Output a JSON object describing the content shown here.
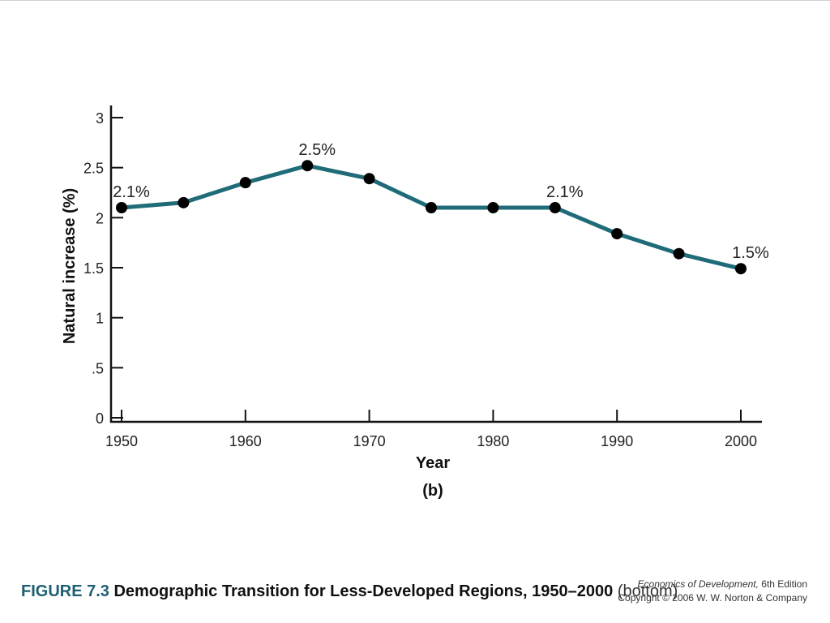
{
  "chart_data": {
    "type": "line",
    "x": [
      1950,
      1955,
      1960,
      1965,
      1970,
      1975,
      1980,
      1985,
      1990,
      1995,
      2000
    ],
    "series": [
      {
        "values": [
          2.1,
          2.15,
          2.35,
          2.52,
          2.39,
          2.1,
          2.1,
          2.1,
          1.84,
          1.64,
          1.49
        ]
      }
    ],
    "xlabel": "Year",
    "ylabel": "Natural increase (%)",
    "sublabel": "(b)",
    "xlim": [
      1950,
      2000
    ],
    "ylim": [
      0,
      3
    ],
    "xticks": [
      1950,
      1960,
      1970,
      1980,
      1990,
      2000
    ],
    "xtick_labels": [
      "1950",
      "1960",
      "1970",
      "1980",
      "1990",
      "2000"
    ],
    "yticks": [
      0,
      0.5,
      1,
      1.5,
      2,
      2.5,
      3
    ],
    "ytick_labels": [
      "0",
      ".5",
      "1",
      "1.5",
      "2",
      "2.5",
      "3"
    ],
    "annotations": [
      {
        "x": 1950,
        "y": 2.1,
        "text": "2.1%"
      },
      {
        "x": 1965,
        "y": 2.52,
        "text": "2.5%"
      },
      {
        "x": 1985,
        "y": 2.1,
        "text": "2.1%"
      },
      {
        "x": 2000,
        "y": 1.49,
        "text": "1.5%"
      }
    ],
    "grid": false,
    "line_color": "#1f6b78",
    "marker_color": "#000000"
  },
  "caption": {
    "figure_number": "FIGURE 7.3",
    "title": "Demographic Transition for Less-Developed Regions, 1950–2000",
    "note": "(bottom)"
  },
  "credit": {
    "book_title": "Economics of Development,",
    "edition": "6th Edition",
    "copyright": "Copyright © 2006 W. W. Norton & Company"
  }
}
